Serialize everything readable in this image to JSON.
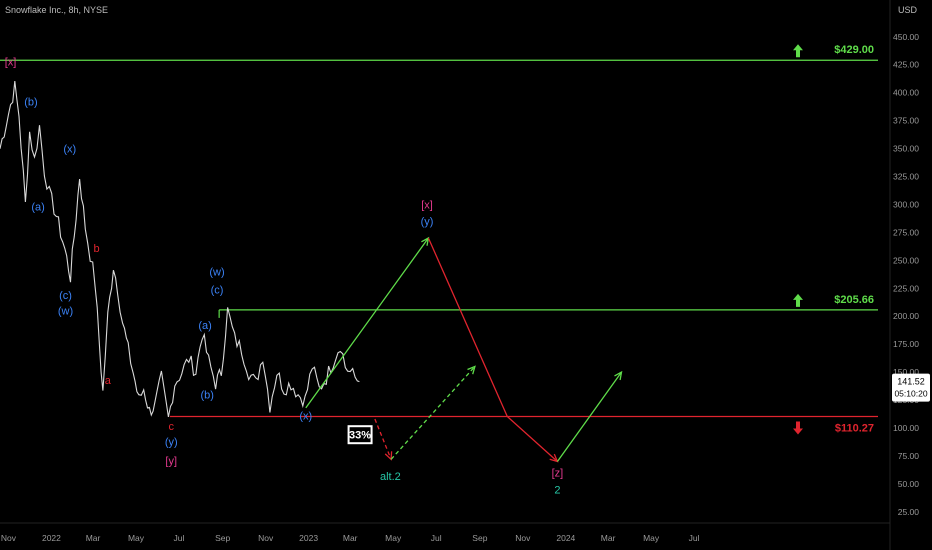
{
  "header": {
    "symbol_line": "Snowflake Inc., 8h, NYSE",
    "currency": "USD"
  },
  "colors": {
    "background": "#000000",
    "price": "#d9d9d9",
    "axis_text": "#9a9a9a",
    "green": "#5fdc4a",
    "red": "#e0242e",
    "blue": "#3b82f6",
    "magenta": "#e63a8f",
    "teal": "#26c6a6"
  },
  "badges": {
    "probability": "33%"
  },
  "chart_data": {
    "type": "line",
    "title": "Snowflake Inc., 8h, NYSE",
    "ylabel": "USD",
    "ylim": [
      15,
      465
    ],
    "x_range": [
      "2021-10-20",
      "2025-06-15"
    ],
    "x_ticks": [
      "Nov",
      "2022",
      "Mar",
      "May",
      "Jul",
      "Sep",
      "Nov",
      "2023",
      "Mar",
      "May",
      "Jul",
      "Sep",
      "Nov",
      "2024",
      "Mar",
      "May",
      "Jul"
    ],
    "x_tick_dates": [
      "2021-11-01",
      "2022-01-01",
      "2022-03-01",
      "2022-05-01",
      "2022-07-01",
      "2022-09-01",
      "2022-11-01",
      "2023-01-01",
      "2023-03-01",
      "2023-05-01",
      "2023-07-01",
      "2023-09-01",
      "2023-11-01",
      "2024-01-01",
      "2024-03-01",
      "2024-05-01",
      "2024-07-01"
    ],
    "y_ticks": [
      "450.00",
      "425.00",
      "400.00",
      "375.00",
      "350.00",
      "325.00",
      "300.00",
      "275.00",
      "250.00",
      "225.00",
      "200.00",
      "175.00",
      "150.00",
      "125.00",
      "100.00",
      "75.00",
      "50.00",
      "25.00"
    ],
    "y_tick_values": [
      450,
      425,
      400,
      375,
      350,
      325,
      300,
      275,
      250,
      225,
      200,
      175,
      150,
      125,
      100,
      75,
      50,
      25
    ],
    "last_price": {
      "value": "141.52",
      "countdown": "05:10:20"
    },
    "price_series": {
      "x": [
        "2021-10-20",
        "2021-11-10",
        "2021-11-16",
        "2021-11-25",
        "2021-12-01",
        "2021-12-08",
        "2021-12-15",
        "2021-12-22",
        "2021-12-29",
        "2022-01-08",
        "2022-01-20",
        "2022-01-28",
        "2022-02-05",
        "2022-02-10",
        "2022-02-18",
        "2022-02-25",
        "2022-03-04",
        "2022-03-10",
        "2022-03-15",
        "2022-03-22",
        "2022-03-30",
        "2022-04-05",
        "2022-04-12",
        "2022-04-20",
        "2022-04-27",
        "2022-05-05",
        "2022-05-12",
        "2022-05-20",
        "2022-05-28",
        "2022-06-06",
        "2022-06-16",
        "2022-06-25",
        "2022-07-05",
        "2022-07-15",
        "2022-07-25",
        "2022-08-03",
        "2022-08-12",
        "2022-08-22",
        "2022-08-30",
        "2022-09-08",
        "2022-09-18",
        "2022-09-28",
        "2022-10-08",
        "2022-10-18",
        "2022-10-28",
        "2022-11-07",
        "2022-11-17",
        "2022-11-27",
        "2022-12-07",
        "2022-12-17",
        "2022-12-27",
        "2023-01-06",
        "2023-01-16",
        "2023-01-26",
        "2023-02-05",
        "2023-02-15",
        "2023-02-22",
        "2023-03-01",
        "2023-03-08",
        "2023-03-14"
      ],
      "y": [
        350,
        405,
        380,
        300,
        365,
        340,
        370,
        330,
        310,
        290,
        260,
        235,
        290,
        325,
        280,
        255,
        230,
        175,
        132,
        200,
        245,
        225,
        195,
        170,
        150,
        125,
        135,
        115,
        120,
        145,
        108,
        140,
        150,
        162,
        150,
        185,
        160,
        140,
        150,
        205,
        180,
        170,
        150,
        140,
        165,
        120,
        150,
        135,
        140,
        130,
        125,
        155,
        135,
        145,
        160,
        175,
        155,
        150,
        145,
        141.52
      ]
    },
    "levels": [
      {
        "label": "$429.00",
        "value": 429,
        "color": "#5fdc4a",
        "arrow": "up"
      },
      {
        "label": "$205.66",
        "value": 205.66,
        "color": "#5fdc4a",
        "arrow": "up"
      },
      {
        "label": "$110.27",
        "value": 110.27,
        "color": "#e0242e",
        "arrow": "down"
      }
    ],
    "projection_paths": [
      {
        "name": "",
        "style": "solid",
        "color": "#5fdc4a",
        "x": [
          "2022-12-28",
          "2023-06-20"
        ],
        "y": [
          118,
          270
        ]
      },
      {
        "name": "",
        "style": "solid",
        "color": "#e0242e",
        "x": [
          "2023-06-20",
          "2023-10-10",
          "2023-12-20"
        ],
        "y": [
          270,
          110.27,
          70
        ]
      },
      {
        "name": "",
        "style": "solid",
        "color": "#5fdc4a",
        "x": [
          "2023-12-20",
          "2024-03-20"
        ],
        "y": [
          70,
          150
        ]
      },
      {
        "name": "",
        "style": "dashed",
        "color": "#e0242e",
        "x": [
          "2023-04-05",
          "2023-04-28"
        ],
        "y": [
          108,
          72
        ]
      },
      {
        "name": "",
        "style": "dashed",
        "color": "#5fdc4a",
        "x": [
          "2023-04-28",
          "2023-08-25"
        ],
        "y": [
          72,
          155
        ]
      }
    ],
    "wave_labels": [
      {
        "text": "[x]",
        "color": "#e63a8f",
        "x": "2021-11-04",
        "y": 428
      },
      {
        "text": "(b)",
        "color": "#3b82f6",
        "x": "2021-12-03",
        "y": 392
      },
      {
        "text": "(x)",
        "color": "#3b82f6",
        "x": "2022-01-27",
        "y": 350
      },
      {
        "text": "(a)",
        "color": "#3b82f6",
        "x": "2021-12-13",
        "y": 298
      },
      {
        "text": "b",
        "color": "#e0242e",
        "x": "2022-03-06",
        "y": 261
      },
      {
        "text": "(c)",
        "color": "#3b82f6",
        "x": "2022-01-21",
        "y": 219
      },
      {
        "text": "(w)",
        "color": "#3b82f6",
        "x": "2022-01-21",
        "y": 205
      },
      {
        "text": "a",
        "color": "#e0242e",
        "x": "2022-03-22",
        "y": 143
      },
      {
        "text": "(w)",
        "color": "#3b82f6",
        "x": "2022-08-24",
        "y": 240
      },
      {
        "text": "(c)",
        "color": "#3b82f6",
        "x": "2022-08-24",
        "y": 224
      },
      {
        "text": "(a)",
        "color": "#3b82f6",
        "x": "2022-08-07",
        "y": 192
      },
      {
        "text": "(b)",
        "color": "#3b82f6",
        "x": "2022-08-10",
        "y": 130
      },
      {
        "text": "c",
        "color": "#e0242e",
        "x": "2022-06-20",
        "y": 102
      },
      {
        "text": "(y)",
        "color": "#3b82f6",
        "x": "2022-06-20",
        "y": 88
      },
      {
        "text": "[y]",
        "color": "#e63a8f",
        "x": "2022-06-20",
        "y": 71
      },
      {
        "text": "(x)",
        "color": "#3b82f6",
        "x": "2022-12-28",
        "y": 111
      },
      {
        "text": "[x]",
        "color": "#e63a8f",
        "x": "2023-06-18",
        "y": 300
      },
      {
        "text": "(y)",
        "color": "#3b82f6",
        "x": "2023-06-18",
        "y": 285
      },
      {
        "text": "alt.2",
        "color": "#26c6a6",
        "x": "2023-04-27",
        "y": 57
      },
      {
        "text": "[z]",
        "color": "#e63a8f",
        "x": "2023-12-20",
        "y": 60
      },
      {
        "text": "2",
        "color": "#26c6a6",
        "x": "2023-12-20",
        "y": 45
      }
    ],
    "probability_badge": {
      "text": "33%",
      "x": "2023-03-15",
      "y": 94
    }
  }
}
